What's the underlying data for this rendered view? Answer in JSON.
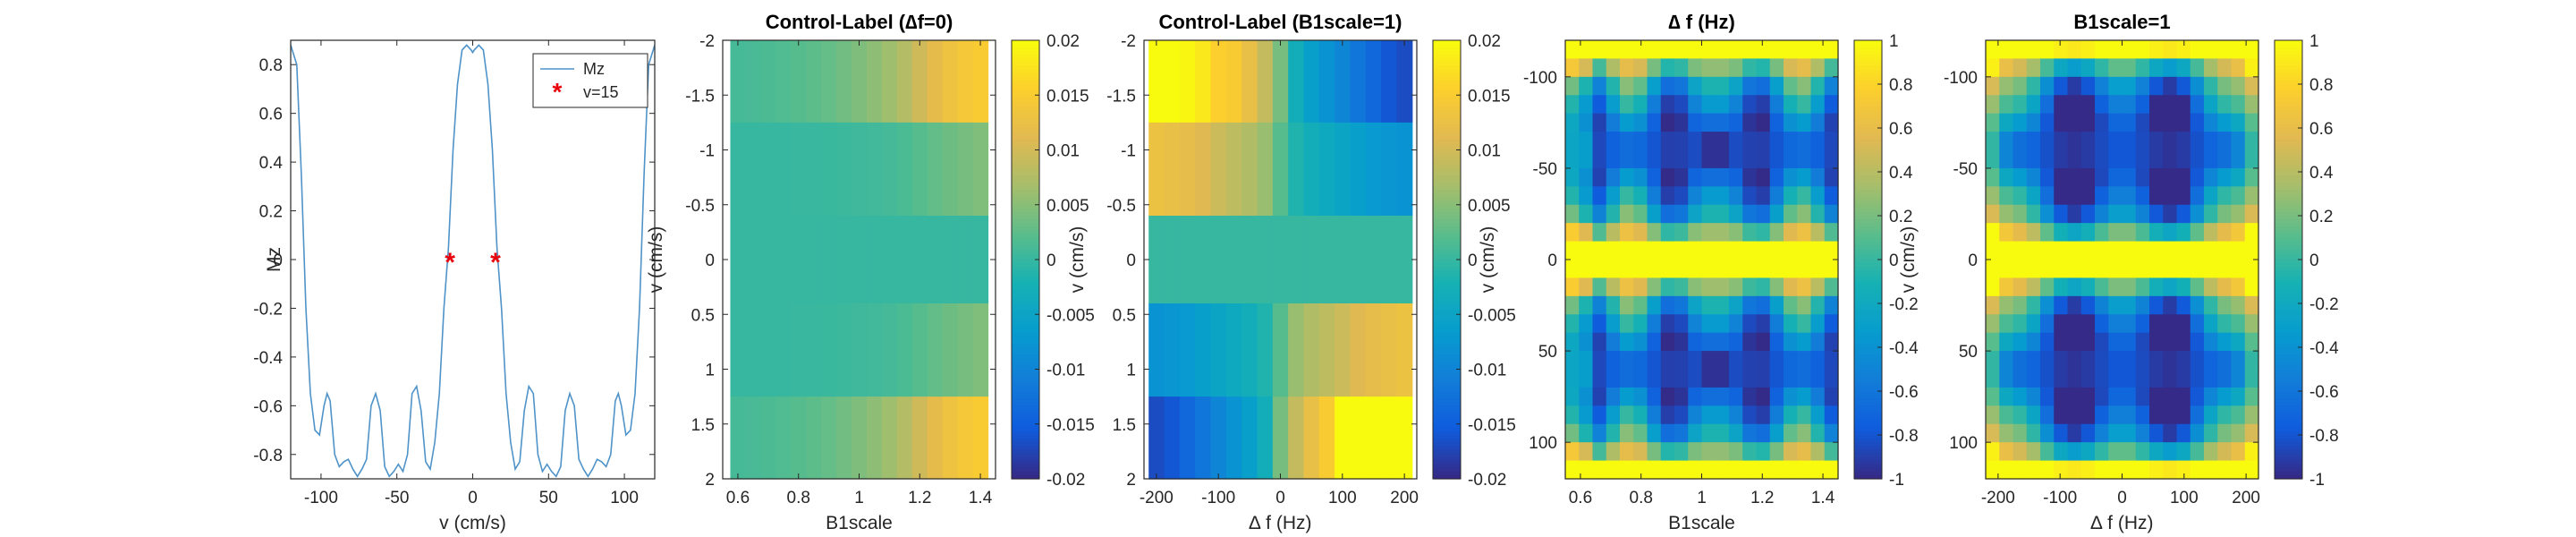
{
  "chart_data": [
    {
      "type": "line",
      "title": "",
      "xlabel": "v (cm/s)",
      "ylabel": "Mz",
      "xlim": [
        -120,
        120
      ],
      "ylim": [
        -0.9,
        0.9
      ],
      "xticks": [
        "-100",
        "-50",
        "0",
        "50",
        "100"
      ],
      "yticks": [
        "0.8",
        "0.6",
        "0.4",
        "0.2",
        "0",
        "-0.2",
        "-0.4",
        "-0.6",
        "-0.8"
      ],
      "legend": {
        "placement": "top-right",
        "entries": [
          "Mz",
          "v=15"
        ]
      },
      "series": [
        {
          "name": "Mz",
          "color": "#4f93c8",
          "x": [
            -120,
            -116,
            -113,
            -110,
            -107,
            -104,
            -101,
            -98,
            -96,
            -94,
            -91,
            -88,
            -85,
            -82,
            -79,
            -76,
            -73,
            -70,
            -67,
            -64,
            -61,
            -58,
            -55,
            -52,
            -49,
            -46,
            -43,
            -40,
            -37,
            -34,
            -31,
            -28,
            -25,
            -22,
            -19,
            -16,
            -13,
            -10,
            -7,
            -4,
            -1,
            0,
            1,
            4,
            7,
            10,
            13,
            16,
            19,
            22,
            25,
            28,
            31,
            34,
            37,
            40,
            43,
            46,
            49,
            52,
            55,
            58,
            61,
            64,
            67,
            70,
            73,
            76,
            79,
            82,
            85,
            88,
            91,
            94,
            96,
            98,
            101,
            104,
            107,
            110,
            113,
            116,
            120
          ],
          "y": [
            0.88,
            0.8,
            0.35,
            -0.2,
            -0.55,
            -0.7,
            -0.72,
            -0.6,
            -0.55,
            -0.58,
            -0.8,
            -0.85,
            -0.83,
            -0.82,
            -0.86,
            -0.89,
            -0.86,
            -0.82,
            -0.6,
            -0.55,
            -0.62,
            -0.85,
            -0.89,
            -0.87,
            -0.84,
            -0.87,
            -0.8,
            -0.55,
            -0.52,
            -0.62,
            -0.83,
            -0.86,
            -0.75,
            -0.55,
            -0.2,
            0.05,
            0.45,
            0.72,
            0.86,
            0.88,
            0.86,
            0.85,
            0.86,
            0.88,
            0.86,
            0.72,
            0.45,
            0.05,
            -0.2,
            -0.55,
            -0.75,
            -0.86,
            -0.83,
            -0.62,
            -0.52,
            -0.55,
            -0.8,
            -0.87,
            -0.84,
            -0.87,
            -0.89,
            -0.85,
            -0.62,
            -0.55,
            -0.6,
            -0.82,
            -0.86,
            -0.89,
            -0.86,
            -0.82,
            -0.83,
            -0.85,
            -0.8,
            -0.58,
            -0.55,
            -0.6,
            -0.72,
            -0.7,
            -0.55,
            -0.2,
            0.35,
            0.8,
            0.88
          ]
        },
        {
          "name": "v=15",
          "color": "#e8000b",
          "marker": "*",
          "x": [
            -15,
            15
          ],
          "y": [
            0,
            0
          ]
        }
      ]
    },
    {
      "type": "heatmap",
      "title": "Control-Label (∆f=0)",
      "xlabel": "B1scale",
      "ylabel": "v (cm/s)",
      "xlim": [
        0.55,
        1.45
      ],
      "ylim": [
        -2,
        2
      ],
      "xticks": [
        "0.6",
        "0.8",
        "1",
        "1.2",
        "1.4"
      ],
      "yticks": [
        "-2",
        "-1.5",
        "-1",
        "-0.5",
        "0",
        "0.5",
        "1",
        "1.5",
        "2"
      ],
      "colorbar": {
        "min": -0.02,
        "max": 0.02,
        "ticks": [
          "0.02",
          "0.015",
          "0.01",
          "0.005",
          "0",
          "-0.005",
          "-0.01",
          "-0.015",
          "-0.02"
        ]
      },
      "x_centers": [
        0.6,
        0.65,
        0.7,
        0.75,
        0.8,
        0.85,
        0.9,
        0.95,
        1.0,
        1.05,
        1.1,
        1.15,
        1.2,
        1.25,
        1.3,
        1.35,
        1.4
      ],
      "y_bands": [
        [
          -2,
          -1.25
        ],
        [
          -1.25,
          -0.4
        ],
        [
          -0.4,
          0.4
        ],
        [
          0.4,
          1.25
        ],
        [
          1.25,
          2
        ]
      ],
      "values": [
        [
          0.001,
          0.0012,
          0.0014,
          0.0017,
          0.002,
          0.0024,
          0.0029,
          0.0036,
          0.0044,
          0.0053,
          0.0063,
          0.0078,
          0.0098,
          0.0118,
          0.0132,
          0.0142,
          0.015
        ],
        [
          0,
          0,
          0,
          0,
          0.0001,
          0.0001,
          0.0002,
          0.0003,
          0.0005,
          0.0007,
          0.0009,
          0.0013,
          0.002,
          0.0028,
          0.0034,
          0.004,
          0.0045
        ],
        [
          0,
          0,
          0,
          0,
          0,
          0,
          0,
          0,
          0,
          0,
          0,
          0,
          0,
          0,
          0,
          0,
          0
        ],
        [
          0,
          0,
          0,
          0,
          0.0001,
          0.0001,
          0.0002,
          0.0003,
          0.0005,
          0.0007,
          0.0009,
          0.0013,
          0.002,
          0.0028,
          0.0034,
          0.004,
          0.0045
        ],
        [
          0.001,
          0.0012,
          0.0014,
          0.0017,
          0.002,
          0.0024,
          0.0029,
          0.0036,
          0.0044,
          0.0053,
          0.0063,
          0.0078,
          0.0098,
          0.0118,
          0.0132,
          0.0142,
          0.015
        ]
      ]
    },
    {
      "type": "heatmap",
      "title": "Control-Label (B1scale=1)",
      "xlabel": "∆ f (Hz)",
      "ylabel": "v (cm/s)",
      "xlim": [
        -220,
        220
      ],
      "ylim": [
        -2,
        2
      ],
      "xticks": [
        "-200",
        "-100",
        "0",
        "100",
        "200"
      ],
      "yticks": [
        "-2",
        "-1.5",
        "-1",
        "-0.5",
        "0",
        "0.5",
        "1",
        "1.5",
        "2"
      ],
      "colorbar": {
        "min": -0.02,
        "max": 0.02,
        "ticks": [
          "0.02",
          "0.015",
          "0.01",
          "0.005",
          "0",
          "-0.005",
          "-0.01",
          "-0.015",
          "-0.02"
        ]
      },
      "x_centers": [
        -200,
        -175,
        -150,
        -125,
        -100,
        -75,
        -50,
        -25,
        0,
        25,
        50,
        75,
        100,
        125,
        150,
        175,
        200
      ],
      "y_bands": [
        [
          -2,
          -1.25
        ],
        [
          -1.25,
          -0.4
        ],
        [
          -0.4,
          0.4
        ],
        [
          0.4,
          1.25
        ],
        [
          1.25,
          2
        ]
      ],
      "values": [
        [
          0.02,
          0.02,
          0.0195,
          0.018,
          0.0155,
          0.015,
          0.0125,
          0.009,
          0.004,
          -0.003,
          -0.006,
          -0.008,
          -0.01,
          -0.012,
          -0.014,
          -0.016,
          -0.017
        ],
        [
          0.013,
          0.0125,
          0.012,
          0.011,
          0.0095,
          0.0085,
          0.0075,
          0.006,
          0.002,
          -0.0015,
          -0.003,
          -0.004,
          -0.005,
          -0.006,
          -0.007,
          -0.0075,
          -0.008
        ],
        [
          0,
          0,
          0,
          0,
          0,
          0,
          0,
          0,
          0,
          0,
          0,
          0,
          0,
          0,
          0,
          0,
          0
        ],
        [
          -0.008,
          -0.0075,
          -0.007,
          -0.006,
          -0.005,
          -0.004,
          -0.003,
          -0.0015,
          0.002,
          0.006,
          0.0075,
          0.0085,
          0.0095,
          0.011,
          0.012,
          0.0125,
          0.013
        ],
        [
          -0.017,
          -0.016,
          -0.014,
          -0.012,
          -0.01,
          -0.008,
          -0.006,
          -0.003,
          0.004,
          0.009,
          0.0125,
          0.015,
          0.02,
          0.02,
          0.02,
          0.02,
          0.02
        ]
      ]
    },
    {
      "type": "heatmap",
      "title": "∆ f (Hz)",
      "xlabel": "B1scale",
      "ylabel": "v (cm/s)",
      "xlim": [
        0.55,
        1.45
      ],
      "ylim": [
        -120,
        120
      ],
      "xticks": [
        "0.6",
        "0.8",
        "1",
        "1.2",
        "1.4"
      ],
      "yticks": [
        "-100",
        "-50",
        "0",
        "50",
        "100"
      ],
      "colorbar": {
        "min": -1,
        "max": 1,
        "ticks": [
          "1",
          "0.8",
          "0.6",
          "0.4",
          "0.2",
          "0",
          "-0.2",
          "-0.4",
          "-0.6",
          "-0.8",
          "-1"
        ]
      },
      "grid": {
        "cols": 20,
        "rows": 24
      }
    },
    {
      "type": "heatmap",
      "title": "B1scale=1",
      "xlabel": "∆ f (Hz)",
      "ylabel": "v (cm/s)",
      "xlim": [
        -220,
        220
      ],
      "ylim": [
        -120,
        120
      ],
      "xticks": [
        "-200",
        "-100",
        "0",
        "100",
        "200"
      ],
      "yticks": [
        "-100",
        "-50",
        "0",
        "50",
        "100"
      ],
      "colorbar": {
        "min": -1,
        "max": 1,
        "ticks": [
          "1",
          "0.8",
          "0.6",
          "0.4",
          "0.2",
          "0",
          "-0.2",
          "-0.4",
          "-0.6",
          "-0.8",
          "-1"
        ]
      },
      "grid": {
        "cols": 20,
        "rows": 24
      }
    }
  ]
}
